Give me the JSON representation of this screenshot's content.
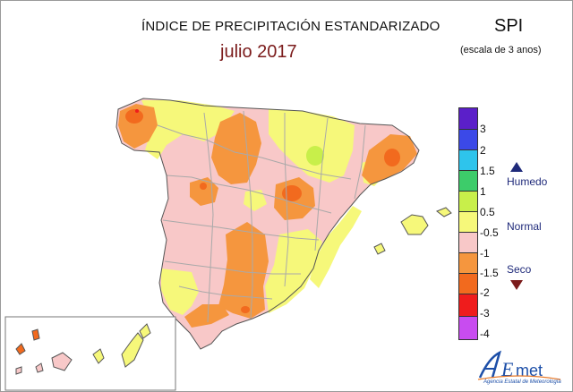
{
  "header": {
    "title": "ÍNDICE DE PRECIPITACIÓN ESTANDARIZADO",
    "subtitle": "julio 2017",
    "index_name": "SPI",
    "scale_note": "(escala de 3 anos)"
  },
  "legend": {
    "labels": [
      "3",
      "2",
      "1.5",
      "1",
      "0.5",
      "-0.5",
      "-1",
      "-1.5",
      "-2",
      "-3",
      "-4"
    ],
    "colors": [
      "#5b1fc9",
      "#3b49e8",
      "#2ec4ec",
      "#3dcc6a",
      "#c8ef4a",
      "#f6f87a",
      "#f8c8c8",
      "#f5963e",
      "#f26a1e",
      "#ef1c1c",
      "#c84cf0"
    ],
    "categories": {
      "humid": "Humedo",
      "normal": "Normal",
      "dry": "Seco"
    }
  },
  "logo": {
    "name": "AEmet",
    "caption": "Agencia Estatal de Meteorología"
  }
}
